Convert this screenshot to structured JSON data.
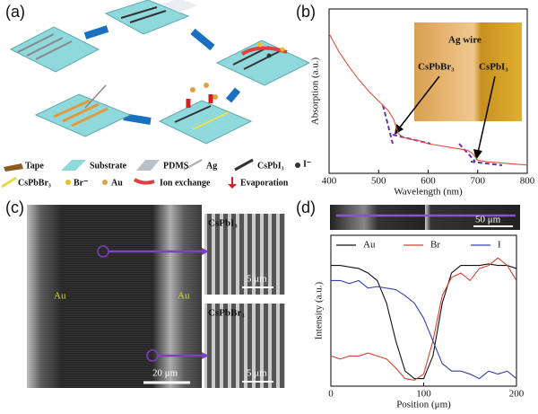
{
  "panel_labels": [
    "(a)",
    "(b)",
    "(c)",
    "(d)"
  ],
  "schematic": {
    "legend": [
      "Tape",
      "Substrate",
      "PDMS",
      "Ag",
      "CsPbI₃",
      "I⁻",
      "CsPbBr₃",
      "Br⁻",
      "Au",
      "Ion exchange",
      "Evaporation"
    ]
  },
  "sem": {
    "au_left": "Au",
    "au_right": "Au",
    "scale_main": "20 μm",
    "inset_top_title": "CsPbI₃",
    "inset_top_scale": "5 μm",
    "inset_bottom_title": "CsPbBr₃",
    "inset_bottom_scale": "5 μm"
  },
  "chart_data": [
    {
      "type": "line",
      "xlabel": "Wavelength (nm)",
      "ylabel": "Absorption (a.u.)",
      "annotations": [
        "Ag wire",
        "CsPbBr₃",
        "CsPbI₃"
      ],
      "x": [
        400,
        420,
        440,
        460,
        480,
        500,
        520,
        530,
        540,
        550,
        560,
        580,
        600,
        620,
        640,
        660,
        680,
        690,
        700,
        720,
        740,
        760,
        780,
        800
      ],
      "series": [
        {
          "color": "#e05040",
          "values": [
            0.85,
            0.74,
            0.65,
            0.57,
            0.5,
            0.44,
            0.38,
            0.33,
            0.24,
            0.22,
            0.21,
            0.2,
            0.18,
            0.17,
            0.16,
            0.15,
            0.14,
            0.12,
            0.08,
            0.07,
            0.065,
            0.06,
            0.055,
            0.05
          ]
        }
      ],
      "xlim": [
        400,
        800
      ],
      "xticks": [
        400,
        500,
        600,
        700,
        800
      ],
      "ylim": [
        0,
        1
      ]
    },
    {
      "type": "line",
      "xlabel": "Position (μm)",
      "ylabel": "Intensity (a.u.)",
      "annotations": [
        "50 μm"
      ],
      "x": [
        0,
        10,
        20,
        30,
        40,
        50,
        60,
        70,
        80,
        90,
        100,
        110,
        120,
        130,
        140,
        150,
        160,
        170,
        180,
        190,
        200
      ],
      "series": [
        {
          "name": "Au",
          "color": "#111111",
          "values": [
            0.8,
            0.8,
            0.79,
            0.78,
            0.75,
            0.7,
            0.55,
            0.3,
            0.1,
            0.05,
            0.05,
            0.2,
            0.55,
            0.75,
            0.8,
            0.8,
            0.8,
            0.81,
            0.8,
            0.8,
            0.78
          ]
        },
        {
          "name": "Br",
          "color": "#d84030",
          "values": [
            0.2,
            0.18,
            0.2,
            0.2,
            0.22,
            0.2,
            0.18,
            0.12,
            0.05,
            0.04,
            0.08,
            0.3,
            0.6,
            0.72,
            0.75,
            0.7,
            0.78,
            0.8,
            0.85,
            0.8,
            0.7
          ]
        },
        {
          "name": "I",
          "color": "#3040b0",
          "values": [
            0.7,
            0.7,
            0.68,
            0.7,
            0.65,
            0.66,
            0.65,
            0.64,
            0.6,
            0.55,
            0.45,
            0.3,
            0.15,
            0.1,
            0.1,
            0.08,
            0.05,
            0.1,
            0.08,
            0.1,
            0.05
          ]
        }
      ],
      "xlim": [
        0,
        200
      ],
      "xticks": [
        0,
        100,
        200
      ],
      "ylim": [
        0,
        1
      ]
    }
  ]
}
